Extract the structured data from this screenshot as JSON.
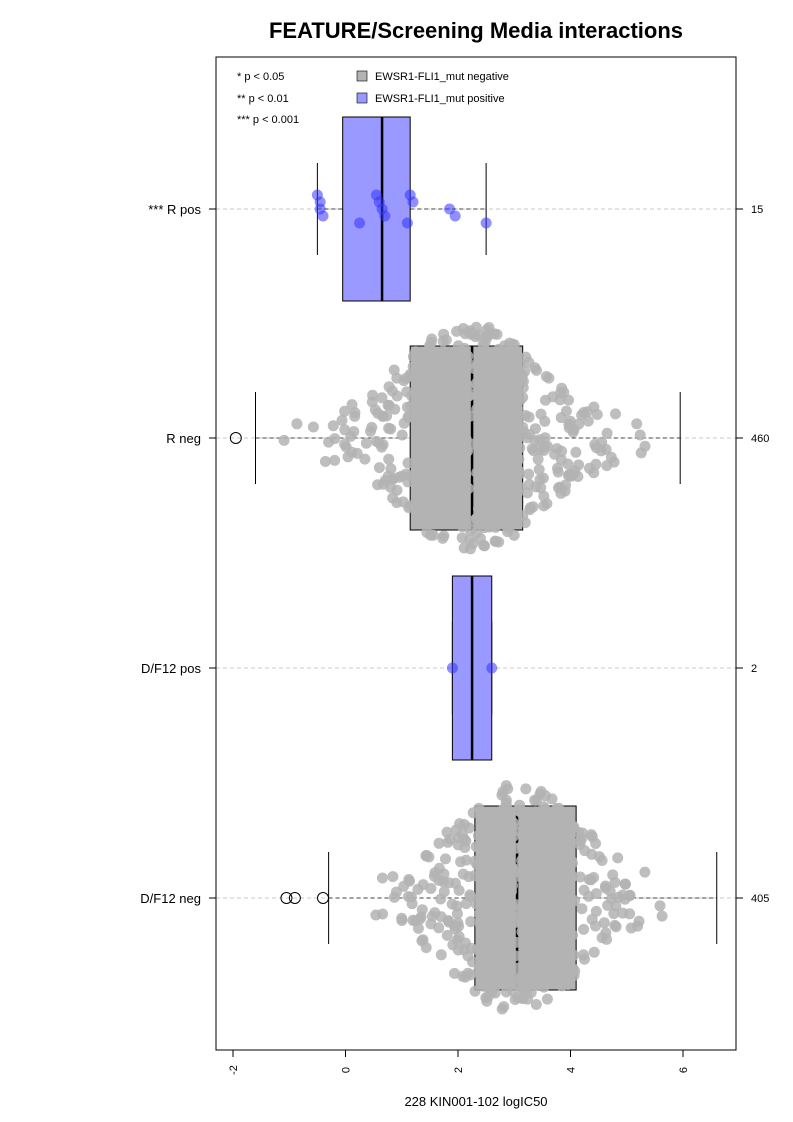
{
  "chart_data": {
    "type": "boxplot-beeswarm",
    "title": "FEATURE/Screening Media interactions",
    "xlabel": "228 KIN001-102 logIC50",
    "ylabel": "",
    "xlim": [
      -2.3,
      7.0
    ],
    "x_ticks": [
      -2,
      0,
      2,
      4,
      6
    ],
    "x_tick_labels": [
      "-2",
      "0",
      "2",
      "4",
      "6"
    ],
    "grid": "dashed horizontal line at each group",
    "legend": {
      "placement": "top-inside",
      "significance": [
        "* p < 0.05",
        "** p < 0.01",
        "*** p < 0.001"
      ],
      "entries": [
        {
          "label": "EWSR1-FLI1_mut negative",
          "color": "#b3b3b3"
        },
        {
          "label": "EWSR1-FLI1_mut positive",
          "color": "#9999ff"
        }
      ]
    },
    "groups": [
      {
        "label": "*** R pos",
        "count": "15",
        "status": "positive",
        "q1": -0.05,
        "median": 0.65,
        "q3": 1.15,
        "whisker_low": -0.5,
        "whisker_high": 2.5,
        "points": [
          -0.5,
          -0.45,
          -0.45,
          -0.4,
          0.25,
          0.55,
          0.6,
          0.65,
          0.7,
          1.1,
          1.15,
          1.2,
          1.85,
          1.95,
          2.5
        ]
      },
      {
        "label": "R neg",
        "count": "460",
        "status": "negative",
        "q1": 1.15,
        "median": 2.25,
        "q3": 3.15,
        "whisker_low": -1.6,
        "whisker_high": 5.95,
        "outliers": [
          -1.95
        ]
      },
      {
        "label": "D/F12 pos",
        "count": "2",
        "status": "positive",
        "q1": 1.9,
        "median": 2.25,
        "q3": 2.6,
        "whisker_low": 1.9,
        "whisker_high": 2.6,
        "points": [
          1.9,
          2.6
        ]
      },
      {
        "label": "D/F12 neg",
        "count": "405",
        "status": "negative",
        "q1": 2.3,
        "median": 3.05,
        "q3": 4.1,
        "whisker_low": -0.3,
        "whisker_high": 6.6,
        "outliers": [
          -1.05,
          -0.9,
          -0.4
        ]
      }
    ]
  },
  "colors": {
    "negative_fill": "#b3b3b3",
    "positive_fill": "#9999ff",
    "positive_point": "#3333ff",
    "grid": "#c8c8c8"
  }
}
